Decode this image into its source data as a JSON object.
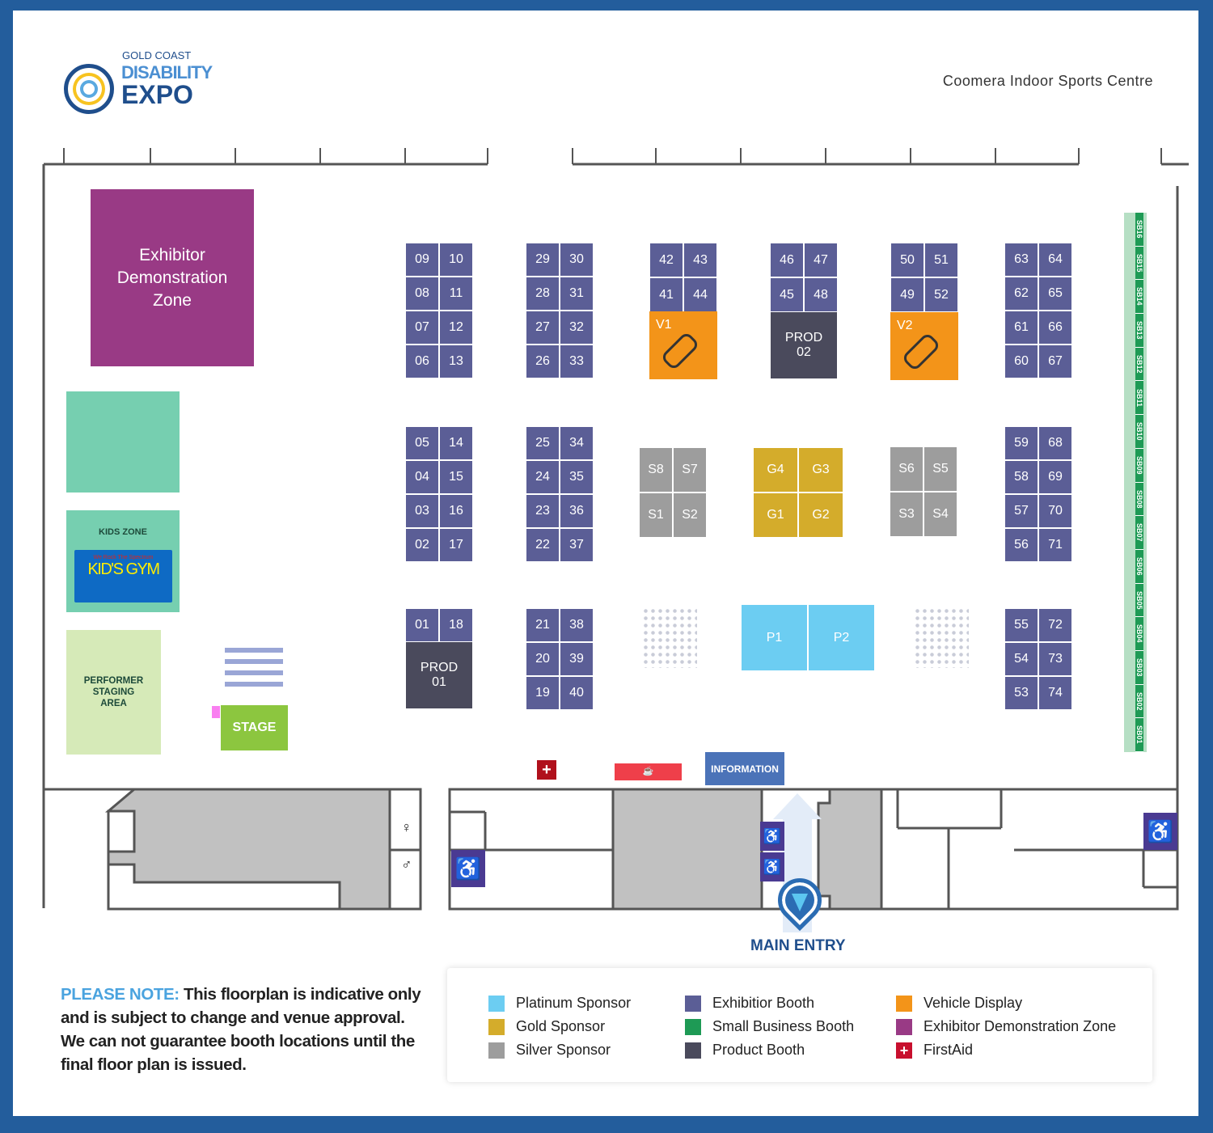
{
  "header": {
    "logo_top": "GOLD COAST",
    "logo_mid": "DISABILITY",
    "logo_bottom": "EXPO",
    "venue": "Coomera Indoor Sports Centre"
  },
  "zones": {
    "demo": "Exhibitor Demonstration Zone",
    "kids": "KIDS ZONE",
    "kids_gym": "KID'S GYM",
    "kids_gym_tag": "We Rock The Spectrum",
    "performer": "PERFORMER STAGING AREA",
    "stage": "STAGE",
    "information": "INFORMATION",
    "main_entry": "MAIN ENTRY"
  },
  "booths": {
    "a1": [
      [
        "09",
        "10"
      ],
      [
        "08",
        "11"
      ],
      [
        "07",
        "12"
      ],
      [
        "06",
        "13"
      ]
    ],
    "b1": [
      [
        "29",
        "30"
      ],
      [
        "28",
        "31"
      ],
      [
        "27",
        "32"
      ],
      [
        "26",
        "33"
      ]
    ],
    "c1": [
      [
        "42",
        "43"
      ],
      [
        "41",
        "44"
      ]
    ],
    "d1": [
      [
        "46",
        "47"
      ],
      [
        "45",
        "48"
      ]
    ],
    "e1": [
      [
        "50",
        "51"
      ],
      [
        "49",
        "52"
      ]
    ],
    "f1": [
      [
        "63",
        "64"
      ],
      [
        "62",
        "65"
      ],
      [
        "61",
        "66"
      ],
      [
        "60",
        "67"
      ]
    ],
    "a2": [
      [
        "05",
        "14"
      ],
      [
        "04",
        "15"
      ],
      [
        "03",
        "16"
      ],
      [
        "02",
        "17"
      ]
    ],
    "b2": [
      [
        "25",
        "34"
      ],
      [
        "24",
        "35"
      ],
      [
        "23",
        "36"
      ],
      [
        "22",
        "37"
      ]
    ],
    "f2": [
      [
        "59",
        "68"
      ],
      [
        "58",
        "69"
      ],
      [
        "57",
        "70"
      ],
      [
        "56",
        "71"
      ]
    ],
    "a3": [
      [
        "01",
        "18"
      ]
    ],
    "b3": [
      [
        "21",
        "38"
      ],
      [
        "20",
        "39"
      ],
      [
        "19",
        "40"
      ]
    ],
    "f3": [
      [
        "55",
        "72"
      ],
      [
        "54",
        "73"
      ],
      [
        "53",
        "74"
      ]
    ],
    "silver_left": [
      [
        "S8",
        "S7"
      ],
      [
        "S1",
        "S2"
      ]
    ],
    "gold": [
      [
        "G4",
        "G3"
      ],
      [
        "G1",
        "G2"
      ]
    ],
    "silver_right": [
      [
        "S6",
        "S5"
      ],
      [
        "S3",
        "S4"
      ]
    ],
    "platinum": [
      [
        "P1",
        "P2"
      ]
    ]
  },
  "vehicles": [
    "V1",
    "V2"
  ],
  "products": [
    "PROD 01",
    "PROD 02"
  ],
  "small_business": [
    "SB16",
    "SB15",
    "SB14",
    "SB13",
    "SB12",
    "SB11",
    "SB10",
    "SB09",
    "SB08",
    "SB07",
    "SB06",
    "SB05",
    "SB04",
    "SB03",
    "SB02",
    "SB01"
  ],
  "note": {
    "lead": "PLEASE NOTE:",
    "text": "This floorplan is indicative only and is subject to change and venue approval. We can not guarantee booth locations until the final floor plan is issued."
  },
  "legend": [
    {
      "label": "Platinum Sponsor",
      "color": "#6ccdf2"
    },
    {
      "label": "Gold Sponsor",
      "color": "#d4ac2b"
    },
    {
      "label": "Silver Sponsor",
      "color": "#9d9d9d"
    },
    {
      "label": "Exhibitior Booth",
      "color": "#5b5e96"
    },
    {
      "label": "Small Business Booth",
      "color": "#1e9a55"
    },
    {
      "label": "Product Booth",
      "color": "#4a4a5c"
    },
    {
      "label": "Vehicle Display",
      "color": "#f39419"
    },
    {
      "label": "Exhibitor Demonstration Zone",
      "color": "#993a85"
    },
    {
      "label": "FirstAid",
      "color": "#c8102e"
    }
  ],
  "colors": {
    "exhibitor": "#5b5e96",
    "silver": "#9d9d9d",
    "gold": "#d4ac2b",
    "platinum": "#6ccdf2",
    "vehicle": "#f39419",
    "product": "#4a4a5c",
    "sb": "#1e9a55",
    "demo": "#993a85",
    "kids": "#76cfb0",
    "performer": "#d6eab8",
    "stage": "#8cc63f",
    "frame": "#235d9c"
  }
}
